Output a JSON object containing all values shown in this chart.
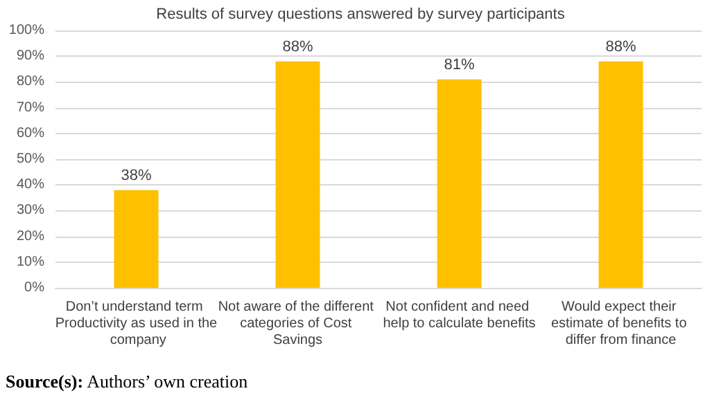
{
  "chart_data": {
    "type": "bar",
    "title": "Results of survey questions answered by survey participants",
    "categories": [
      "Don’t understand term Productivity as used in the company",
      "Not aware of the different categories of Cost Savings",
      "Not confident and need help to calculate benefits",
      "Would expect their estimate of benefits to differ from finance"
    ],
    "values": [
      38,
      88,
      81,
      88
    ],
    "value_labels": [
      "38%",
      "88%",
      "81%",
      "88%"
    ],
    "color": "#ffc000",
    "ylim": [
      0,
      100
    ],
    "yticks": [
      {
        "value": 0,
        "label": "0%"
      },
      {
        "value": 10,
        "label": "10%"
      },
      {
        "value": 20,
        "label": "20%"
      },
      {
        "value": 30,
        "label": "30%"
      },
      {
        "value": 40,
        "label": "40%"
      },
      {
        "value": 50,
        "label": "50%"
      },
      {
        "value": 60,
        "label": "60%"
      },
      {
        "value": 70,
        "label": "70%"
      },
      {
        "value": 80,
        "label": "80%"
      },
      {
        "value": 90,
        "label": "90%"
      },
      {
        "value": 100,
        "label": "100%"
      }
    ],
    "grid": "y",
    "annotations": [
      "Source(s): Authors’ own creation"
    ]
  }
}
